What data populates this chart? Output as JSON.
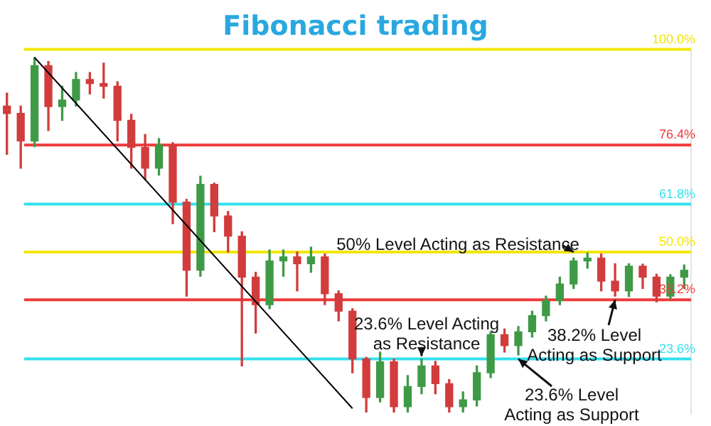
{
  "chart_data": {
    "type": "candlestick",
    "title": "Fibonacci trading",
    "categories": [
      null,
      null,
      null,
      null,
      null,
      null,
      null,
      null,
      null,
      null,
      null,
      null,
      null,
      null,
      null,
      null,
      null,
      null,
      null,
      null,
      null,
      null,
      null,
      null,
      null,
      null,
      null,
      null,
      null,
      null,
      null,
      null,
      null,
      null,
      null,
      null,
      null,
      null,
      null,
      null,
      null,
      null,
      null,
      null,
      null,
      null,
      null,
      null,
      null,
      null
    ],
    "ohlc": [
      [
        86,
        89.2,
        74.1,
        84.2
      ],
      [
        84.2,
        86,
        70.7,
        77.4
      ],
      [
        77.4,
        98,
        76,
        96
      ],
      [
        96,
        97,
        80,
        85.9
      ],
      [
        85.9,
        90.9,
        82.5,
        87.5
      ],
      [
        87.5,
        94.3,
        86,
        92.6
      ],
      [
        92.6,
        94.3,
        89,
        91.6
      ],
      [
        91.6,
        96.6,
        88,
        90.9
      ],
      [
        90.9,
        92,
        77.4,
        82.5
      ],
      [
        82.5,
        84,
        70.7,
        75.8
      ],
      [
        75.8,
        79,
        68,
        70.7
      ],
      [
        70.7,
        78,
        69,
        76.4
      ],
      [
        76.4,
        77,
        57,
        62.3
      ],
      [
        62.3,
        63,
        39.1,
        45.5
      ],
      [
        45.5,
        68.7,
        44,
        66.7
      ],
      [
        66.7,
        67,
        55,
        58.9
      ],
      [
        58.9,
        60,
        50,
        53.9
      ],
      [
        53.9,
        55,
        21.9,
        43.8
      ],
      [
        43.8,
        45,
        30,
        37
      ],
      [
        37,
        50.5,
        36,
        47.8
      ],
      [
        47.8,
        50.5,
        44,
        48.8
      ],
      [
        48.8,
        50,
        40.4,
        47.1
      ],
      [
        47.1,
        51.2,
        45,
        48.8
      ],
      [
        48.8,
        49.5,
        37,
        39.7
      ],
      [
        39.7,
        40.4,
        33,
        35.4
      ],
      [
        35.4,
        36,
        20.2,
        23.6
      ],
      [
        23.6,
        24,
        10.5,
        14.1
      ],
      [
        14.1,
        25.3,
        13,
        22.9
      ],
      [
        22.9,
        23.6,
        10.5,
        11.8
      ],
      [
        11.8,
        19.5,
        10.5,
        16.8
      ],
      [
        16.8,
        23.6,
        15,
        21.9
      ],
      [
        21.9,
        23,
        15,
        17.5
      ],
      [
        17.5,
        18.5,
        10.5,
        11.8
      ],
      [
        11.8,
        15.5,
        10.5,
        13.5
      ],
      [
        13.5,
        21.9,
        12,
        20.2
      ],
      [
        20.2,
        30.3,
        19,
        29.6
      ],
      [
        29.6,
        31,
        25.3,
        26.9
      ],
      [
        26.9,
        31.6,
        24.6,
        30.3
      ],
      [
        30.3,
        35.4,
        29,
        34.3
      ],
      [
        34.3,
        39.1,
        33,
        38
      ],
      [
        38,
        43.8,
        37,
        42.1
      ],
      [
        42.1,
        48.5,
        41,
        47.8
      ],
      [
        47.8,
        49.8,
        46,
        48.5
      ],
      [
        48.5,
        49.5,
        40.4,
        42.8
      ],
      [
        42.8,
        47.1,
        39.1,
        40.4
      ],
      [
        40.4,
        47.1,
        39,
        46.5
      ],
      [
        46.5,
        47,
        41,
        43.8
      ],
      [
        43.8,
        44.5,
        37.7,
        39.1
      ],
      [
        39.1,
        44.4,
        38.5,
        43.8
      ],
      [
        43.8,
        46.8,
        41,
        45.5
      ]
    ],
    "ylim": [
      10,
      100
    ],
    "series": [
      {
        "type": "line",
        "color": "#000000",
        "values": [
          null,
          null,
          98,
          null,
          null,
          null,
          null,
          null,
          null,
          null,
          null,
          null,
          null,
          null,
          null,
          null,
          null,
          null,
          null,
          null,
          null,
          null,
          null,
          null,
          null,
          11.4,
          null,
          null,
          null,
          null,
          null,
          null,
          null,
          null,
          null,
          null,
          null,
          null,
          null,
          null,
          null,
          null,
          null,
          null,
          null,
          null,
          null,
          null,
          null,
          null
        ]
      }
    ],
    "yticks": [
      {
        "value": 23.6,
        "label": "23.6%"
      },
      {
        "value": 38.2,
        "label": "38.2%"
      },
      {
        "value": 50,
        "label": "50.0%"
      },
      {
        "value": 61.8,
        "label": "61.8%"
      },
      {
        "value": 76.4,
        "label": "76.4%"
      },
      {
        "value": 100,
        "label": "100.0%"
      }
    ],
    "ref_lines": [
      {
        "axis": "y",
        "value": 100,
        "color": "#f2e600"
      },
      {
        "axis": "y",
        "value": 76.4,
        "color": "#f03a3a"
      },
      {
        "axis": "y",
        "value": 61.8,
        "color": "#33e0ee"
      },
      {
        "axis": "y",
        "value": 50,
        "color": "#f2e600"
      },
      {
        "axis": "y",
        "value": 38.2,
        "color": "#f03a3a"
      },
      {
        "axis": "y",
        "value": 23.6,
        "color": "#33e0ee"
      }
    ],
    "annotations": [
      {
        "text": "50% Level Acting as Resistance",
        "y": 50
      },
      {
        "text": "23.6% Level Acting as Resistance",
        "y": 23.6
      },
      {
        "text": "38.2% Level Acting as Support",
        "y": 38.2
      },
      {
        "text": "23.6% Level Acting as Support",
        "y": 23.6
      }
    ],
    "legend": false
  }
}
